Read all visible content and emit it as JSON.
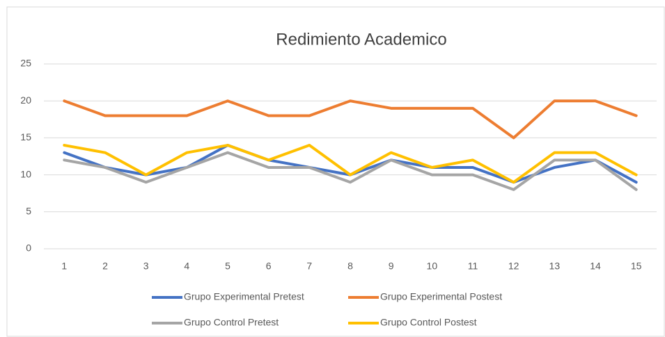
{
  "chart_data": {
    "type": "line",
    "title": "Redimiento Academico",
    "categories": [
      "1",
      "2",
      "3",
      "4",
      "5",
      "6",
      "7",
      "8",
      "9",
      "10",
      "11",
      "12",
      "13",
      "14",
      "15"
    ],
    "series": [
      {
        "name": "Grupo Experimental Pretest",
        "color": "#4472c4",
        "values": [
          13,
          11,
          10,
          11,
          14,
          12,
          11,
          10,
          12,
          11,
          11,
          9,
          11,
          12,
          9
        ]
      },
      {
        "name": "Grupo Experimental Postest",
        "color": "#ed7d31",
        "values": [
          20,
          18,
          18,
          18,
          20,
          18,
          18,
          20,
          19,
          19,
          19,
          15,
          20,
          20,
          18
        ]
      },
      {
        "name": "Grupo Control Pretest",
        "color": "#a5a5a5",
        "values": [
          12,
          11,
          9,
          11,
          13,
          11,
          11,
          9,
          12,
          10,
          10,
          8,
          12,
          12,
          8
        ]
      },
      {
        "name": "Grupo Control Postest",
        "color": "#ffc000",
        "values": [
          14,
          13,
          10,
          13,
          14,
          12,
          14,
          10,
          13,
          11,
          12,
          9,
          13,
          13,
          10
        ]
      }
    ],
    "ylim": [
      0,
      25
    ],
    "yticks": [
      0,
      5,
      10,
      15,
      20,
      25
    ],
    "grid": true,
    "legend": "bottom"
  }
}
